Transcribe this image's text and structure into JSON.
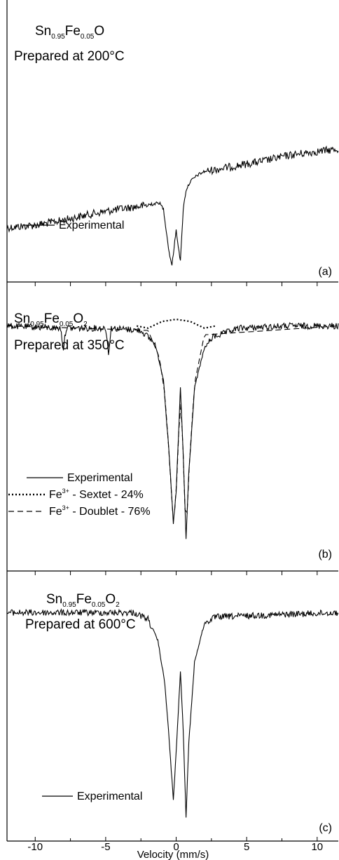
{
  "chart_data": {
    "type": "line",
    "x_axis": {
      "label": "Velocity (mm/s)",
      "range": [
        -12,
        11.5
      ],
      "ticks": [
        -10,
        -5,
        0,
        5,
        10
      ],
      "tick_labels": [
        "-10",
        "-5",
        "0",
        "5",
        "10"
      ]
    },
    "panels": [
      {
        "panel_label": "(a)",
        "title_lines": [
          {
            "parts": [
              [
                "Sn",
                "n"
              ],
              [
                "0.95",
                "sub"
              ],
              [
                "Fe",
                "n"
              ],
              [
                "0.05",
                "sub"
              ],
              [
                "O",
                "n"
              ]
            ]
          },
          {
            "parts": [
              [
                "Prepared at 200°C",
                "n"
              ]
            ]
          }
        ],
        "legend": [
          {
            "label": "Experimental",
            "style": "solid"
          }
        ],
        "series": [
          {
            "name": "Experimental",
            "style": "solid",
            "x": [
              -12,
              -10,
              -8,
              -6,
              -4,
              -2,
              -1.2,
              -0.9,
              -0.5,
              -0.3,
              0.0,
              0.3,
              0.5,
              0.7,
              1.0,
              1.5,
              2,
              4,
              6,
              8,
              10,
              11.5
            ],
            "y": [
              0.7,
              0.68,
              0.64,
              0.59,
              0.55,
              0.52,
              0.5,
              0.55,
              0.9,
              1.0,
              0.72,
              0.97,
              0.55,
              0.4,
              0.33,
              0.28,
              0.25,
              0.21,
              0.17,
              0.12,
              0.09,
              0.07
            ]
          }
        ]
      },
      {
        "panel_label": "(b)",
        "title_lines": [
          {
            "parts": [
              [
                "Sn",
                "n"
              ],
              [
                "0.95",
                "sub"
              ],
              [
                "Fe",
                "n"
              ],
              [
                "0.05",
                "sub"
              ],
              [
                "O",
                "n"
              ],
              [
                "2",
                "sub"
              ]
            ]
          },
          {
            "parts": [
              [
                "Prepared at 350°C",
                "n"
              ]
            ]
          }
        ],
        "legend": [
          {
            "label": "Experimental",
            "style": "solid",
            "parts": [
              [
                "Experimental",
                "n"
              ]
            ]
          },
          {
            "label": "Fe3+ - Sextet - 24%",
            "style": "dotted",
            "parts": [
              [
                "Fe",
                "n"
              ],
              [
                "3+",
                "sup"
              ],
              [
                " - Sextet - 24%",
                "n"
              ]
            ]
          },
          {
            "label": "Fe3+ - Doublet - 76%",
            "style": "dashed",
            "parts": [
              [
                "Fe",
                "n"
              ],
              [
                "3+",
                "sup"
              ],
              [
                " - Doublet - 76%",
                "n"
              ]
            ]
          }
        ],
        "series": [
          {
            "name": "Experimental",
            "style": "solid",
            "x": [
              -12,
              -8.2,
              -8.0,
              -7.8,
              -5,
              -4.8,
              -4.6,
              -2.5,
              -1.5,
              -0.9,
              -0.5,
              -0.2,
              0.0,
              0.3,
              0.5,
              0.7,
              0.9,
              1.3,
              2.0,
              2.6,
              4.5,
              8,
              11.5
            ],
            "y": [
              0.04,
              0.05,
              0.14,
              0.05,
              0.05,
              0.16,
              0.05,
              0.06,
              0.12,
              0.28,
              0.62,
              0.93,
              0.79,
              0.32,
              0.62,
              1.0,
              0.7,
              0.32,
              0.14,
              0.09,
              0.05,
              0.04,
              0.04
            ]
          },
          {
            "name": "Fe3+ - Sextet - 24%",
            "style": "dotted",
            "x": [
              -2.8,
              -2.0,
              -1.0,
              0.0,
              1.0,
              2.0,
              2.8
            ],
            "y": [
              0.04,
              0.05,
              0.02,
              0.01,
              0.02,
              0.05,
              0.04
            ]
          },
          {
            "name": "Fe3+ - Doublet - 76%",
            "style": "dashed",
            "x": [
              -12,
              -2,
              -1.2,
              -0.8,
              -0.5,
              -0.2,
              0.0,
              0.3,
              0.5,
              0.7,
              0.9,
              1.3,
              2.0,
              11.5
            ],
            "y": [
              0.04,
              0.06,
              0.18,
              0.35,
              0.62,
              0.93,
              0.8,
              0.34,
              0.62,
              1.0,
              0.7,
              0.3,
              0.08,
              0.04
            ]
          }
        ]
      },
      {
        "panel_label": "(c)",
        "title_lines": [
          {
            "parts": [
              [
                "Sn",
                "n"
              ],
              [
                "0.95",
                "sub"
              ],
              [
                "Fe",
                "n"
              ],
              [
                "0.05",
                "sub"
              ],
              [
                "O",
                "n"
              ],
              [
                "2",
                "sub"
              ]
            ]
          },
          {
            "parts": [
              [
                "Prepared at 600°C",
                "n"
              ]
            ]
          }
        ],
        "legend": [
          {
            "label": "Experimental",
            "style": "solid"
          }
        ],
        "series": [
          {
            "name": "Experimental",
            "style": "solid",
            "x": [
              -12,
              -3,
              -2,
              -1.3,
              -0.8,
              -0.5,
              -0.2,
              0.0,
              0.3,
              0.5,
              0.7,
              0.9,
              1.3,
              2.0,
              2.8,
              11.5
            ],
            "y": [
              0.05,
              0.05,
              0.08,
              0.18,
              0.38,
              0.64,
              0.92,
              0.7,
              0.32,
              0.6,
              1.0,
              0.65,
              0.28,
              0.1,
              0.07,
              0.05
            ]
          }
        ]
      }
    ]
  }
}
